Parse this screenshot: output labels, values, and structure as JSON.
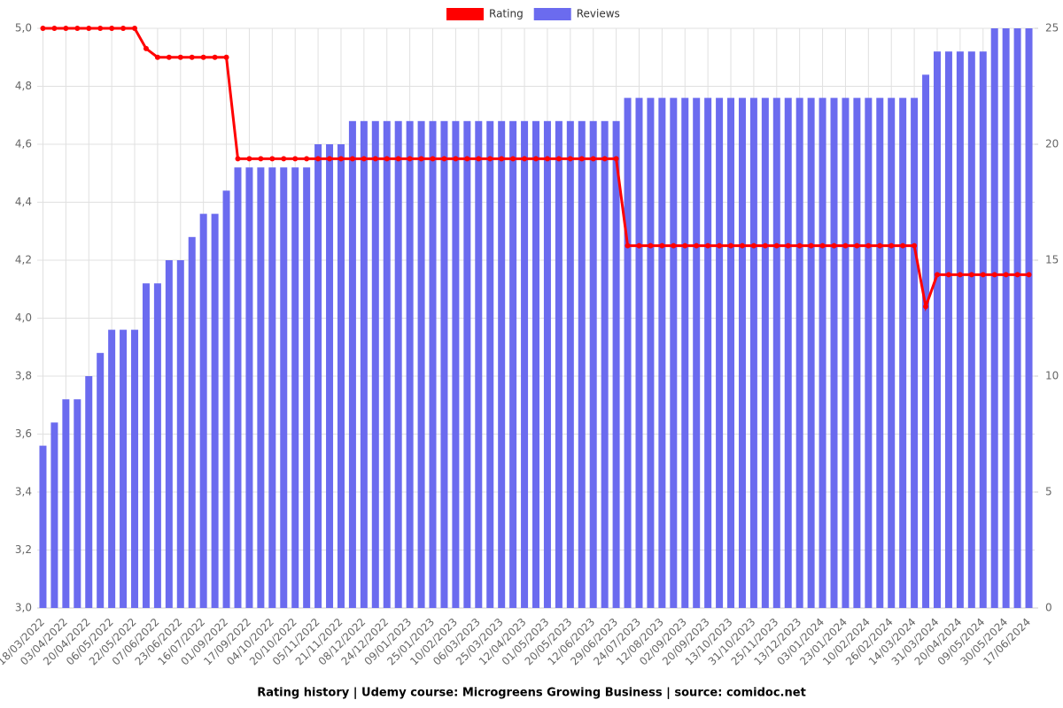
{
  "chart_data": {
    "type": "combo",
    "title": "Rating history | Udemy course: Microgreens Growing Business | source: comidoc.net",
    "categories": [
      "18/03/2022",
      null,
      "03/04/2022",
      null,
      "20/04/2022",
      null,
      "06/05/2022",
      null,
      "22/05/2022",
      null,
      "07/06/2022",
      null,
      "23/06/2022",
      null,
      "16/07/2022",
      null,
      "01/09/2022",
      null,
      "17/09/2022",
      null,
      "04/10/2022",
      null,
      "20/10/2022",
      null,
      "05/11/2022",
      null,
      "21/11/2022",
      null,
      "08/12/2022",
      null,
      "24/12/2022",
      null,
      "09/01/2023",
      null,
      "25/01/2023",
      null,
      "10/02/2023",
      null,
      "06/03/2023",
      null,
      "25/03/2023",
      null,
      "12/04/2023",
      null,
      "01/05/2023",
      null,
      "20/05/2023",
      null,
      "12/06/2023",
      null,
      "29/06/2023",
      null,
      "24/07/2023",
      null,
      "12/08/2023",
      null,
      "02/09/2023",
      null,
      "20/09/2023",
      null,
      "13/10/2023",
      null,
      "31/10/2023",
      null,
      "25/11/2023",
      null,
      "13/12/2023",
      null,
      "03/01/2024",
      null,
      "23/01/2024",
      null,
      "10/02/2024",
      null,
      "26/02/2024",
      null,
      "14/03/2024",
      null,
      "31/03/2024",
      null,
      "20/04/2024",
      null,
      "09/05/2024",
      null,
      "30/05/2024",
      null,
      "17/06/2024"
    ],
    "series": [
      {
        "name": "Rating",
        "color": "#ff0000",
        "axis": "y",
        "kind": "line",
        "values": [
          5,
          5,
          5,
          5,
          5,
          5,
          5,
          5,
          5,
          4.93,
          4.9,
          4.9,
          4.9,
          4.9,
          4.9,
          4.9,
          4.9,
          4.55,
          4.55,
          4.55,
          4.55,
          4.55,
          4.55,
          4.55,
          4.55,
          4.55,
          4.55,
          4.55,
          4.55,
          4.55,
          4.55,
          4.55,
          4.55,
          4.55,
          4.55,
          4.55,
          4.55,
          4.55,
          4.55,
          4.55,
          4.55,
          4.55,
          4.55,
          4.55,
          4.55,
          4.55,
          4.55,
          4.55,
          4.55,
          4.55,
          4.55,
          4.25,
          4.25,
          4.25,
          4.25,
          4.25,
          4.25,
          4.25,
          4.25,
          4.25,
          4.25,
          4.25,
          4.25,
          4.25,
          4.25,
          4.25,
          4.25,
          4.25,
          4.25,
          4.25,
          4.25,
          4.25,
          4.25,
          4.25,
          4.25,
          4.25,
          4.25,
          4.04,
          4.15,
          4.15,
          4.15,
          4.15,
          4.15,
          4.15,
          4.15,
          4.15,
          4.15
        ]
      },
      {
        "name": "Reviews",
        "color": "#6b6bef",
        "axis": "y2",
        "kind": "bar",
        "values": [
          7,
          8,
          9,
          9,
          10,
          11,
          12,
          12,
          12,
          14,
          14,
          15,
          15,
          16,
          17,
          17,
          18,
          19,
          19,
          19,
          19,
          19,
          19,
          19,
          20,
          20,
          20,
          21,
          21,
          21,
          21,
          21,
          21,
          21,
          21,
          21,
          21,
          21,
          21,
          21,
          21,
          21,
          21,
          21,
          21,
          21,
          21,
          21,
          21,
          21,
          21,
          22,
          22,
          22,
          22,
          22,
          22,
          22,
          22,
          22,
          22,
          22,
          22,
          22,
          22,
          22,
          22,
          22,
          22,
          22,
          22,
          22,
          22,
          22,
          22,
          22,
          22,
          23,
          24,
          24,
          24,
          24,
          24,
          25,
          25,
          25,
          25
        ]
      }
    ],
    "ylim": [
      3.0,
      5.0
    ],
    "yticks": [
      {
        "value": 3.0,
        "label": "3,0"
      },
      {
        "value": 3.2,
        "label": "3,2"
      },
      {
        "value": 3.4,
        "label": "3,4"
      },
      {
        "value": 3.6,
        "label": "3,6"
      },
      {
        "value": 3.8,
        "label": "3,8"
      },
      {
        "value": 4.0,
        "label": "4,0"
      },
      {
        "value": 4.2,
        "label": "4,2"
      },
      {
        "value": 4.4,
        "label": "4,4"
      },
      {
        "value": 4.6,
        "label": "4,6"
      },
      {
        "value": 4.8,
        "label": "4,8"
      },
      {
        "value": 5.0,
        "label": "5,0"
      }
    ],
    "y2lim": [
      0,
      25
    ],
    "y2ticks": [
      0,
      5,
      10,
      15,
      20,
      25
    ],
    "grid": true,
    "legend": "top"
  }
}
